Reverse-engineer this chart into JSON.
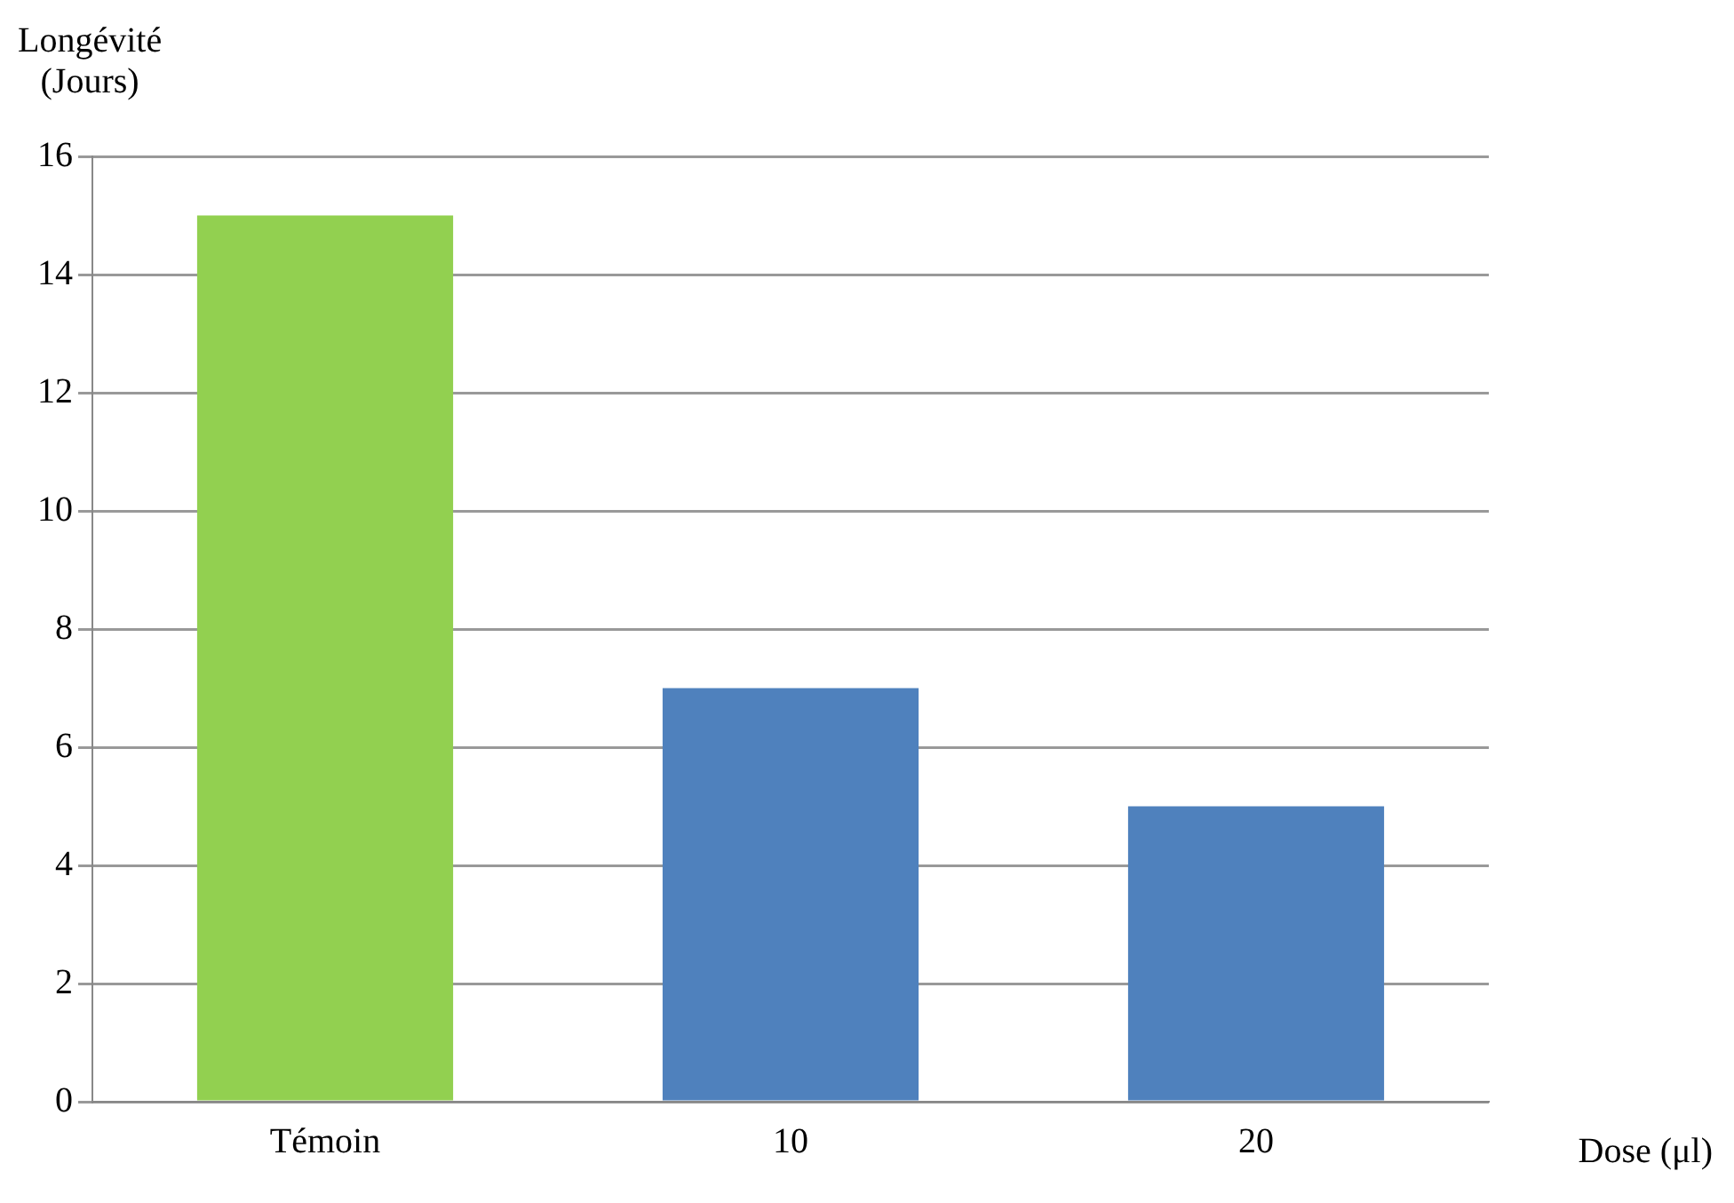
{
  "chart_data": {
    "type": "bar",
    "ylabel": "Longévité\n(Jours)",
    "xlabel": "Dose (μl)",
    "categories": [
      "Témoin",
      "10",
      "20"
    ],
    "values": [
      15,
      7,
      5
    ],
    "colors": [
      "#92d050",
      "#4f81bd",
      "#4f81bd"
    ],
    "ylim": [
      0,
      16
    ],
    "yticks": [
      0,
      2,
      4,
      6,
      8,
      10,
      12,
      14,
      16
    ],
    "grid": "y",
    "legend": false
  }
}
